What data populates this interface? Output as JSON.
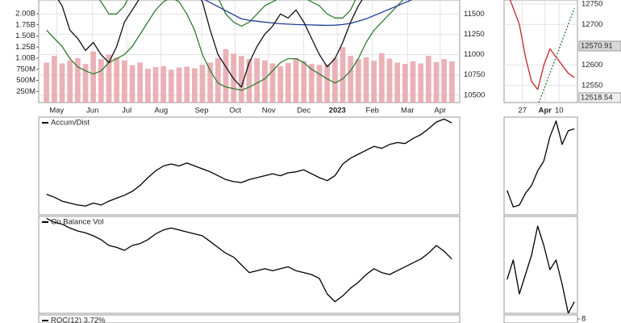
{
  "chart_data": [
    {
      "type": "price",
      "x": [
        0,
        1,
        2,
        3,
        4,
        5,
        6,
        7,
        8,
        9,
        10,
        11,
        12,
        13,
        14,
        15,
        16,
        17,
        18,
        19,
        20,
        21,
        22,
        23,
        24,
        25,
        26,
        27,
        28,
        29,
        30,
        31,
        32,
        33,
        34,
        35,
        36,
        37,
        38,
        39,
        40,
        41,
        42,
        43,
        44,
        45,
        46,
        47,
        48,
        49,
        50,
        51,
        52
      ],
      "xlim": [
        -1,
        53
      ],
      "xticks": [
        {
          "value": 1.3,
          "label": "May"
        },
        {
          "value": 5.9,
          "label": "Jun"
        },
        {
          "value": 10.3,
          "label": "Jul"
        },
        {
          "value": 14.7,
          "label": "Aug"
        },
        {
          "value": 19.9,
          "label": "Sep"
        },
        {
          "value": 24.2,
          "label": "Oct"
        },
        {
          "value": 28.5,
          "label": "Nov"
        },
        {
          "value": 33.0,
          "label": "Dec"
        },
        {
          "value": 37.3,
          "label": "2023",
          "bold": true
        },
        {
          "value": 41.8,
          "label": "Feb"
        },
        {
          "value": 46.3,
          "label": "Mar"
        },
        {
          "value": 50.5,
          "label": "Apr"
        }
      ],
      "ylim": [
        10409,
        11672
      ],
      "yticks": [
        10500,
        10750,
        11000,
        11250,
        11500
      ],
      "y2lim": [
        0,
        2309000000
      ],
      "y2ticks": [
        {
          "value": 2000000000,
          "label": "2.00B"
        },
        {
          "value": 1750000000,
          "label": "1.75B"
        },
        {
          "value": 1500000000,
          "label": "1.50B"
        },
        {
          "value": 1250000000,
          "label": "1.25B"
        },
        {
          "value": 1000000000,
          "label": "1.00B"
        },
        {
          "value": 750000000,
          "label": "750M"
        },
        {
          "value": 500000000,
          "label": "500M"
        },
        {
          "value": 250000000,
          "label": "250M"
        }
      ],
      "grid": true,
      "series": [
        {
          "axis": "y2",
          "color": "#e6a4aa",
          "values": [
            900000000,
            1050000000,
            880000000,
            950000000,
            1000000000,
            870000000,
            1150000000,
            980000000,
            1080000000,
            1010000000,
            950000000,
            840000000,
            900000000,
            760000000,
            800000000,
            820000000,
            740000000,
            790000000,
            810000000,
            770000000,
            850000000,
            900000000,
            1000000000,
            1200000000,
            1100000000,
            1050000000,
            980000000,
            1000000000,
            950000000,
            880000000,
            820000000,
            890000000,
            1000000000,
            940000000,
            870000000,
            850000000,
            860000000,
            1000000000,
            1250000000,
            1050000000,
            980000000,
            1020000000,
            940000000,
            1110000000,
            990000000,
            900000000,
            870000000,
            930000000,
            880000000,
            1050000000,
            910000000,
            980000000,
            930000000
          ]
        },
        {
          "color": "#2e7d32",
          "values": [
            12500,
            12400,
            12300,
            12200,
            12100,
            11950,
            11800,
            11650,
            11500,
            11500,
            11600,
            11800,
            12000,
            12200,
            12300,
            12400,
            12450,
            12500,
            12450,
            12300,
            12100,
            11900,
            11700,
            11500,
            11400,
            11350,
            11400,
            11500,
            11600,
            11650,
            11700,
            11700,
            11750,
            11700,
            11650,
            11600,
            11500,
            11450,
            11450,
            11550,
            11750,
            11950,
            12100,
            12200,
            12300,
            12350,
            12400,
            12450,
            12500,
            12550,
            12600,
            12650,
            12700
          ]
        },
        {
          "color": "#2e7d32",
          "values": [
            11300,
            11200,
            11100,
            10950,
            10850,
            10800,
            10760,
            10800,
            10900,
            10950,
            11000,
            11100,
            11250,
            11400,
            11550,
            11650,
            11700,
            11650,
            11500,
            11300,
            11000,
            10800,
            10650,
            10600,
            10580,
            10560,
            10600,
            10650,
            10700,
            10800,
            10900,
            10950,
            10950,
            10900,
            10820,
            10760,
            10700,
            10650,
            10700,
            10800,
            10950,
            11150,
            11300,
            11400,
            11500,
            11600,
            11700,
            11750,
            11800,
            11850,
            11900,
            11950,
            12000
          ]
        },
        {
          "color": "#1f3a93",
          "values": [
            12300,
            12250,
            12200,
            12120,
            12050,
            11980,
            11920,
            11860,
            11820,
            11800,
            11790,
            11780,
            11790,
            11800,
            11810,
            11800,
            11790,
            11770,
            11750,
            11720,
            11690,
            11640,
            11590,
            11540,
            11490,
            11440,
            11420,
            11410,
            11400,
            11390,
            11380,
            11375,
            11370,
            11368,
            11365,
            11362,
            11360,
            11362,
            11370,
            11385,
            11410,
            11440,
            11480,
            11520,
            11560,
            11600,
            11640,
            11680,
            11720,
            11760,
            11800,
            11840,
            11880
          ]
        },
        {
          "color": "#111111",
          "values": [
            11900,
            11750,
            11600,
            11300,
            11200,
            11050,
            11150,
            11000,
            10900,
            11100,
            11400,
            11550,
            11700,
            11850,
            12000,
            12100,
            12200,
            12100,
            11950,
            11800,
            11650,
            11300,
            11000,
            10850,
            10700,
            10600,
            10900,
            11100,
            11250,
            11350,
            11500,
            11450,
            11550,
            11400,
            11200,
            11000,
            10850,
            10950,
            11150,
            11400,
            11600,
            11750,
            11800,
            11850,
            11900,
            11950,
            12050,
            12150,
            12250,
            12300,
            12350,
            12400,
            12450
          ]
        }
      ]
    },
    {
      "type": "line",
      "title": "Accum/Dist",
      "x": [
        0,
        1,
        2,
        3,
        4,
        5,
        6,
        7,
        8,
        9,
        10,
        11,
        12,
        13,
        14,
        15,
        16,
        17,
        18,
        19,
        20,
        21,
        22,
        23,
        24,
        25,
        26,
        27,
        28,
        29,
        30,
        31,
        32,
        33,
        34,
        35,
        36,
        37,
        38,
        39,
        40,
        41,
        42,
        43,
        44,
        45,
        46,
        47,
        48,
        49,
        50,
        51,
        52
      ],
      "xlim": [
        -1,
        53
      ],
      "ylim": [
        0,
        100
      ],
      "series": [
        {
          "color": "#000000",
          "values": [
            21,
            18,
            14,
            12,
            10,
            9,
            12,
            10,
            14,
            17,
            20,
            24,
            30,
            38,
            45,
            50,
            52,
            50,
            53,
            50,
            47,
            44,
            40,
            36,
            34,
            33,
            36,
            38,
            40,
            42,
            40,
            43,
            44,
            46,
            42,
            38,
            35,
            40,
            52,
            58,
            62,
            66,
            70,
            68,
            72,
            74,
            73,
            78,
            82,
            88,
            95,
            98,
            94
          ]
        }
      ]
    },
    {
      "type": "line",
      "title": "On Balance Vol",
      "x": [
        0,
        1,
        2,
        3,
        4,
        5,
        6,
        7,
        8,
        9,
        10,
        11,
        12,
        13,
        14,
        15,
        16,
        17,
        18,
        19,
        20,
        21,
        22,
        23,
        24,
        25,
        26,
        27,
        28,
        29,
        30,
        31,
        32,
        33,
        34,
        35,
        36,
        37,
        38,
        39,
        40,
        41,
        42,
        43,
        44,
        45,
        46,
        47,
        48,
        49,
        50,
        51,
        52
      ],
      "xlim": [
        -1,
        53
      ],
      "ylim": [
        0,
        100
      ],
      "series": [
        {
          "color": "#000000",
          "values": [
            98,
            94,
            92,
            88,
            85,
            83,
            80,
            76,
            70,
            68,
            65,
            70,
            72,
            76,
            82,
            86,
            88,
            86,
            84,
            82,
            80,
            74,
            68,
            62,
            58,
            50,
            42,
            44,
            46,
            44,
            46,
            48,
            44,
            42,
            40,
            36,
            20,
            12,
            18,
            26,
            32,
            40,
            46,
            42,
            40,
            44,
            48,
            52,
            56,
            62,
            70,
            64,
            56
          ]
        }
      ]
    },
    {
      "type": "line",
      "title": "ROC(12) 3.72%"
    },
    {
      "type": "price",
      "x": [
        0,
        1,
        2,
        3,
        4,
        5,
        6,
        7,
        8,
        9,
        10,
        11
      ],
      "xlim": [
        -0.5,
        11.5
      ],
      "xticks": [
        {
          "value": 2.5,
          "label": "27"
        },
        {
          "value": 6.2,
          "label": "Apr",
          "bold": true
        },
        {
          "value": 8.5,
          "label": "10"
        }
      ],
      "ylim": [
        12508,
        12760
      ],
      "yticks": [
        12550,
        12600,
        12700,
        12750
      ],
      "grid": true,
      "annotations": [
        "12570.91",
        "12518.54"
      ],
      "series": [
        {
          "color": "#2e7d32",
          "style": "dotted",
          "values": [
            null,
            null,
            null,
            null,
            null,
            12500,
            12540,
            12580,
            12620,
            12660,
            12700,
            12740
          ]
        },
        {
          "color": "#c0282f",
          "values": [
            12780,
            12740,
            12700,
            12620,
            12560,
            12540,
            12600,
            12640,
            12620,
            12600,
            12580,
            12570
          ]
        }
      ]
    },
    {
      "type": "line",
      "x": [
        0,
        1,
        2,
        3,
        4,
        5,
        6,
        7,
        8,
        9,
        10,
        11
      ],
      "xlim": [
        -0.5,
        11.5
      ],
      "ylim": [
        0,
        100
      ],
      "series": [
        {
          "color": "#000000",
          "values": [
            25,
            8,
            10,
            22,
            30,
            45,
            55,
            80,
            96,
            72,
            86,
            88
          ]
        }
      ]
    },
    {
      "type": "line",
      "x": [
        0,
        1,
        2,
        3,
        4,
        5,
        6,
        7,
        8,
        9,
        10,
        11
      ],
      "xlim": [
        -0.5,
        11.5
      ],
      "ylim": [
        0,
        100
      ],
      "series": [
        {
          "color": "#000000",
          "values": [
            35,
            55,
            20,
            40,
            60,
            90,
            70,
            45,
            55,
            30,
            0,
            12
          ]
        }
      ]
    },
    {
      "type": "line",
      "ylim": [
        -16,
        32
      ],
      "yticks": [
        8
      ]
    }
  ]
}
